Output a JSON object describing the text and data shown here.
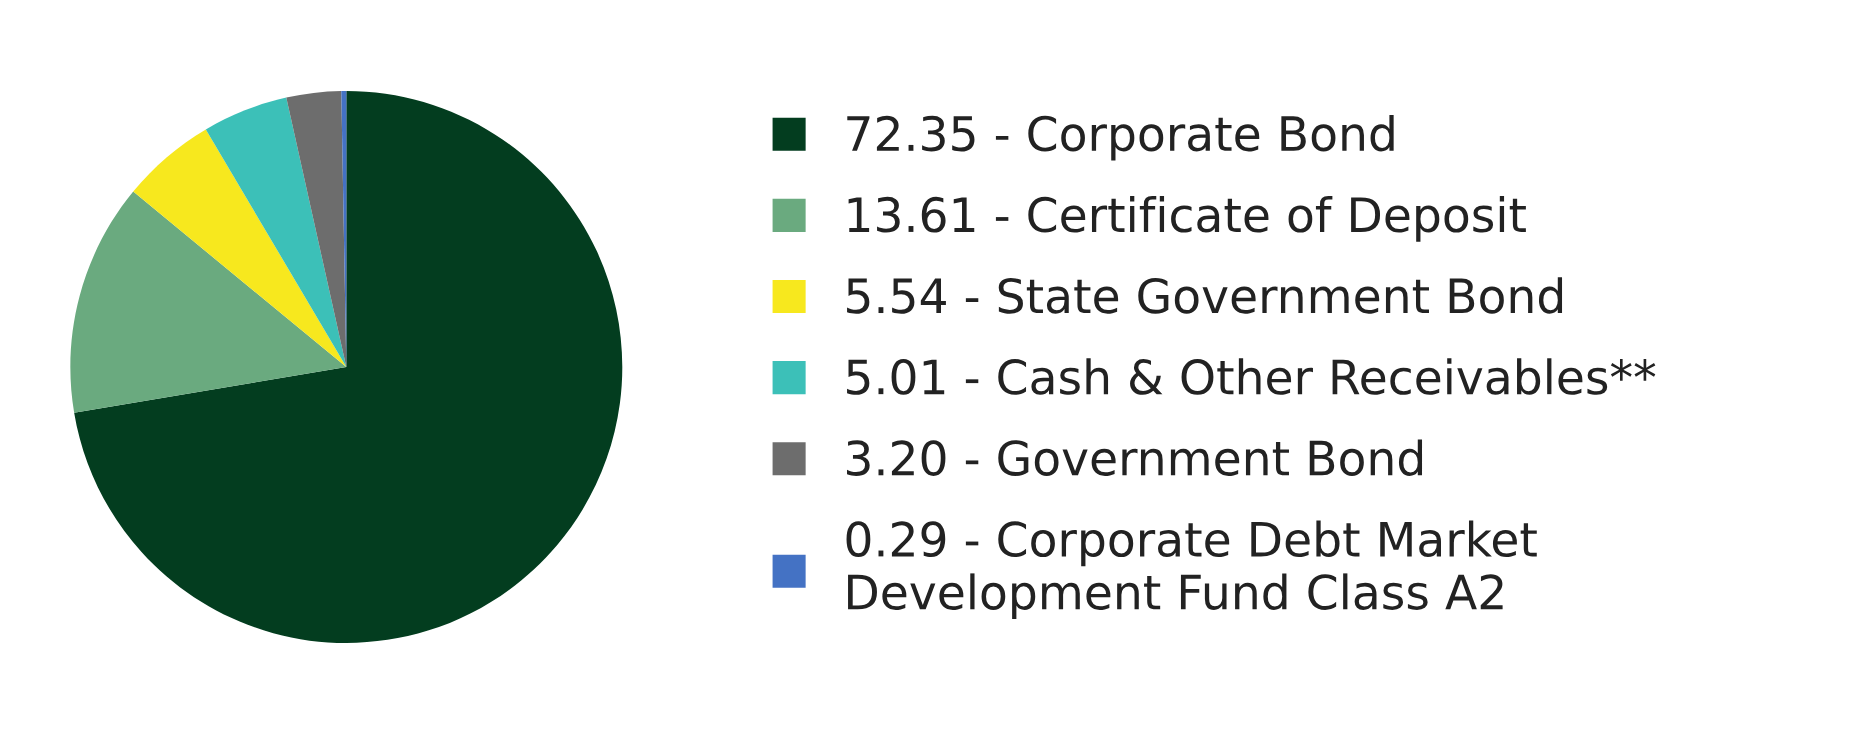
{
  "chart_data": {
    "type": "pie",
    "categories": [
      "Corporate Bond",
      "Certificate of Deposit",
      "State Government Bond",
      "Cash & Other Receivables**",
      "Government Bond",
      "Corporate Debt Market\nDevelopment Fund Class A2"
    ],
    "values": [
      72.35,
      13.61,
      5.54,
      5.01,
      3.2,
      0.29
    ],
    "value_labels": [
      "72.35",
      "13.61",
      "5.54",
      "5.01",
      "3.20",
      "0.29"
    ],
    "colors": [
      "#033d1f",
      "#6aaa7f",
      "#f7e81e",
      "#3cc0b8",
      "#6d6d6d",
      "#4472c4"
    ],
    "legend": "right"
  }
}
